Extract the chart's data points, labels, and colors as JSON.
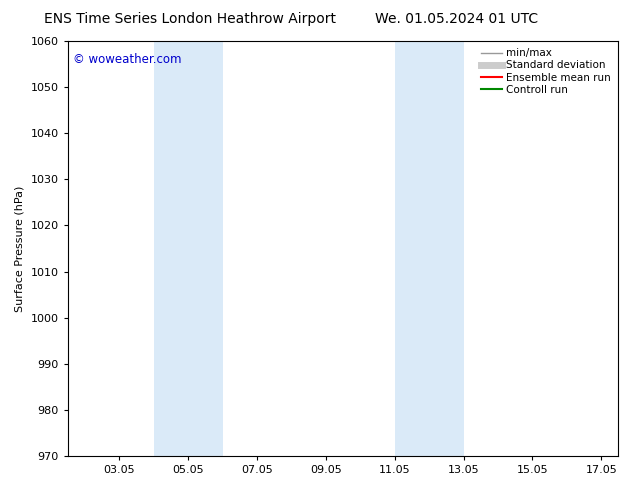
{
  "title_left": "ENS Time Series London Heathrow Airport",
  "title_right": "We. 01.05.2024 01 UTC",
  "ylabel": "Surface Pressure (hPa)",
  "ylim": [
    970,
    1060
  ],
  "yticks": [
    970,
    980,
    990,
    1000,
    1010,
    1020,
    1030,
    1040,
    1050,
    1060
  ],
  "xlim_start": 1.5,
  "xlim_end": 17.5,
  "xtick_positions": [
    3,
    5,
    7,
    9,
    11,
    13,
    15,
    17
  ],
  "xtick_labels": [
    "03.05",
    "05.05",
    "07.05",
    "09.05",
    "11.05",
    "13.05",
    "15.05",
    "17.05"
  ],
  "blue_bands": [
    {
      "x_start": 4.0,
      "x_end": 6.0
    },
    {
      "x_start": 11.0,
      "x_end": 13.0
    }
  ],
  "band_color": "#daeaf8",
  "background_color": "#ffffff",
  "watermark": "© woweather.com",
  "watermark_color": "#0000cc",
  "watermark_fontsize": 8.5,
  "legend_items": [
    {
      "label": "min/max",
      "color": "#999999",
      "lw": 1.0
    },
    {
      "label": "Standard deviation",
      "color": "#cccccc",
      "lw": 5
    },
    {
      "label": "Ensemble mean run",
      "color": "#ff0000",
      "lw": 1.5
    },
    {
      "label": "Controll run",
      "color": "#008800",
      "lw": 1.5
    }
  ],
  "title_fontsize": 10,
  "axis_label_fontsize": 8,
  "tick_fontsize": 8,
  "legend_fontsize": 7.5
}
